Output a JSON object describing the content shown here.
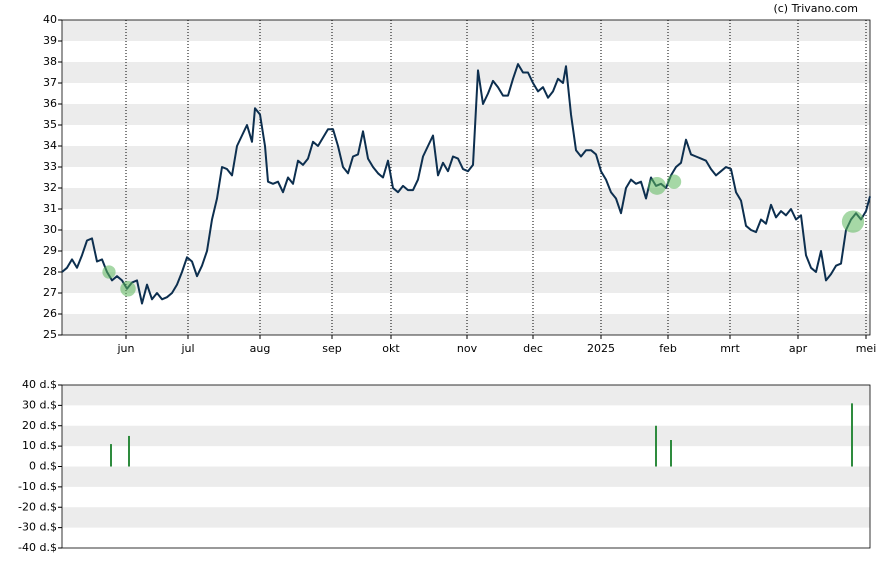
{
  "chart_data": [
    {
      "type": "line",
      "credit": "(c) Trivano.com",
      "xlim": [
        0,
        808
      ],
      "ylim": [
        25,
        40
      ],
      "yticks": [
        25,
        26,
        27,
        28,
        29,
        30,
        31,
        32,
        33,
        34,
        35,
        36,
        37,
        38,
        39,
        40
      ],
      "xticks": [
        {
          "value": 64,
          "label": "jun"
        },
        {
          "value": 126,
          "label": "jul"
        },
        {
          "value": 198,
          "label": "aug"
        },
        {
          "value": 270,
          "label": "sep"
        },
        {
          "value": 329,
          "label": "okt"
        },
        {
          "value": 405,
          "label": "nov"
        },
        {
          "value": 471,
          "label": "dec"
        },
        {
          "value": 539,
          "label": "2025"
        },
        {
          "value": 606,
          "label": "feb"
        },
        {
          "value": 668,
          "label": "mrt"
        },
        {
          "value": 736,
          "label": "apr"
        },
        {
          "value": 804,
          "label": "mei"
        }
      ],
      "grid": true,
      "color": "#0d2f4f",
      "marker_color": "#5cb85c",
      "x": [
        0,
        5,
        10,
        15,
        20,
        25,
        30,
        35,
        40,
        45,
        50,
        55,
        60,
        65,
        70,
        75,
        80,
        85,
        90,
        95,
        100,
        105,
        110,
        115,
        120,
        125,
        130,
        135,
        140,
        145,
        150,
        155,
        160,
        165,
        170,
        175,
        180,
        185,
        190,
        193,
        198,
        203,
        206,
        211,
        216,
        221,
        226,
        231,
        236,
        241,
        246,
        251,
        256,
        261,
        266,
        271,
        276,
        281,
        286,
        291,
        296,
        301,
        306,
        311,
        316,
        321,
        326,
        331,
        336,
        341,
        346,
        351,
        356,
        361,
        366,
        371,
        376,
        381,
        386,
        391,
        396,
        401,
        406,
        411,
        416,
        421,
        426,
        431,
        436,
        441,
        446,
        451,
        456,
        461,
        466,
        471,
        476,
        481,
        486,
        491,
        496,
        501,
        504,
        509,
        514,
        519,
        524,
        529,
        534,
        539,
        544,
        549,
        554,
        559,
        564,
        569,
        574,
        579,
        584,
        589,
        594,
        599,
        604,
        609,
        614,
        619,
        624,
        629,
        634,
        639,
        644,
        649,
        654,
        659,
        664,
        669,
        674,
        679,
        684,
        689,
        694,
        699,
        704,
        709,
        714,
        719,
        724,
        729,
        734,
        739,
        744,
        749,
        754,
        759,
        764,
        769,
        774,
        779,
        784,
        789,
        794,
        799,
        804,
        808
      ],
      "values": [
        28.0,
        28.2,
        28.6,
        28.2,
        28.8,
        29.5,
        29.6,
        28.5,
        28.6,
        28.0,
        27.6,
        27.8,
        27.6,
        27.2,
        27.5,
        27.6,
        26.5,
        27.4,
        26.7,
        27.0,
        26.7,
        26.8,
        27.0,
        27.4,
        28.0,
        28.7,
        28.5,
        27.8,
        28.3,
        29.0,
        30.5,
        31.5,
        33.0,
        32.9,
        32.6,
        34.0,
        34.5,
        35.0,
        34.2,
        35.8,
        35.5,
        34.0,
        32.3,
        32.2,
        32.3,
        31.8,
        32.5,
        32.2,
        33.3,
        33.1,
        33.4,
        34.2,
        34.0,
        34.4,
        34.8,
        34.8,
        34.0,
        33.0,
        32.7,
        33.5,
        33.6,
        34.7,
        33.4,
        33.0,
        32.7,
        32.5,
        33.3,
        32.0,
        31.8,
        32.1,
        31.9,
        31.9,
        32.4,
        33.5,
        34.0,
        34.5,
        32.6,
        33.2,
        32.8,
        33.5,
        33.4,
        32.9,
        32.8,
        33.1,
        37.6,
        36.0,
        36.5,
        37.1,
        36.8,
        36.4,
        36.4,
        37.2,
        37.9,
        37.5,
        37.5,
        37.0,
        36.6,
        36.8,
        36.3,
        36.6,
        37.2,
        37.0,
        37.8,
        35.5,
        33.8,
        33.5,
        33.8,
        33.8,
        33.6,
        32.8,
        32.4,
        31.8,
        31.5,
        30.8,
        32.0,
        32.4,
        32.2,
        32.3,
        31.5,
        32.5,
        32.1,
        32.2,
        32.0,
        32.6,
        33.0,
        33.2,
        34.3,
        33.6,
        33.5,
        33.4,
        33.3,
        32.9,
        32.6,
        32.8,
        33.0,
        32.9,
        31.8,
        31.4,
        30.2,
        30.0,
        29.9,
        30.5,
        30.3,
        31.2,
        30.6,
        30.9,
        30.7,
        31.0,
        30.5,
        30.7,
        28.8,
        28.2,
        28.0,
        29.0,
        27.6,
        27.9,
        28.3,
        28.4,
        30.0,
        30.5,
        30.8,
        30.5,
        30.9,
        31.6
      ],
      "markers": {
        "x": [
          47,
          66,
          595,
          612,
          791
        ],
        "y": [
          28.0,
          27.2,
          32.1,
          32.3,
          30.4
        ]
      }
    },
    {
      "type": "bar",
      "xlim": [
        0,
        808
      ],
      "ylim": [
        -40,
        40
      ],
      "color": "#2e8b3e",
      "yticks": [
        {
          "value": -40,
          "label": "-40 d.$"
        },
        {
          "value": -30,
          "label": "-30 d.$"
        },
        {
          "value": -20,
          "label": "-20 d.$"
        },
        {
          "value": -10,
          "label": "-10 d.$"
        },
        {
          "value": 0,
          "label": "0 d.$"
        },
        {
          "value": 10,
          "label": "10 d.$"
        },
        {
          "value": 20,
          "label": "20 d.$"
        },
        {
          "value": 30,
          "label": "30 d.$"
        },
        {
          "value": 40,
          "label": "40 d.$"
        }
      ],
      "x": [
        49,
        67,
        594,
        609,
        790
      ],
      "values": [
        11,
        15,
        20,
        13,
        31
      ]
    }
  ]
}
